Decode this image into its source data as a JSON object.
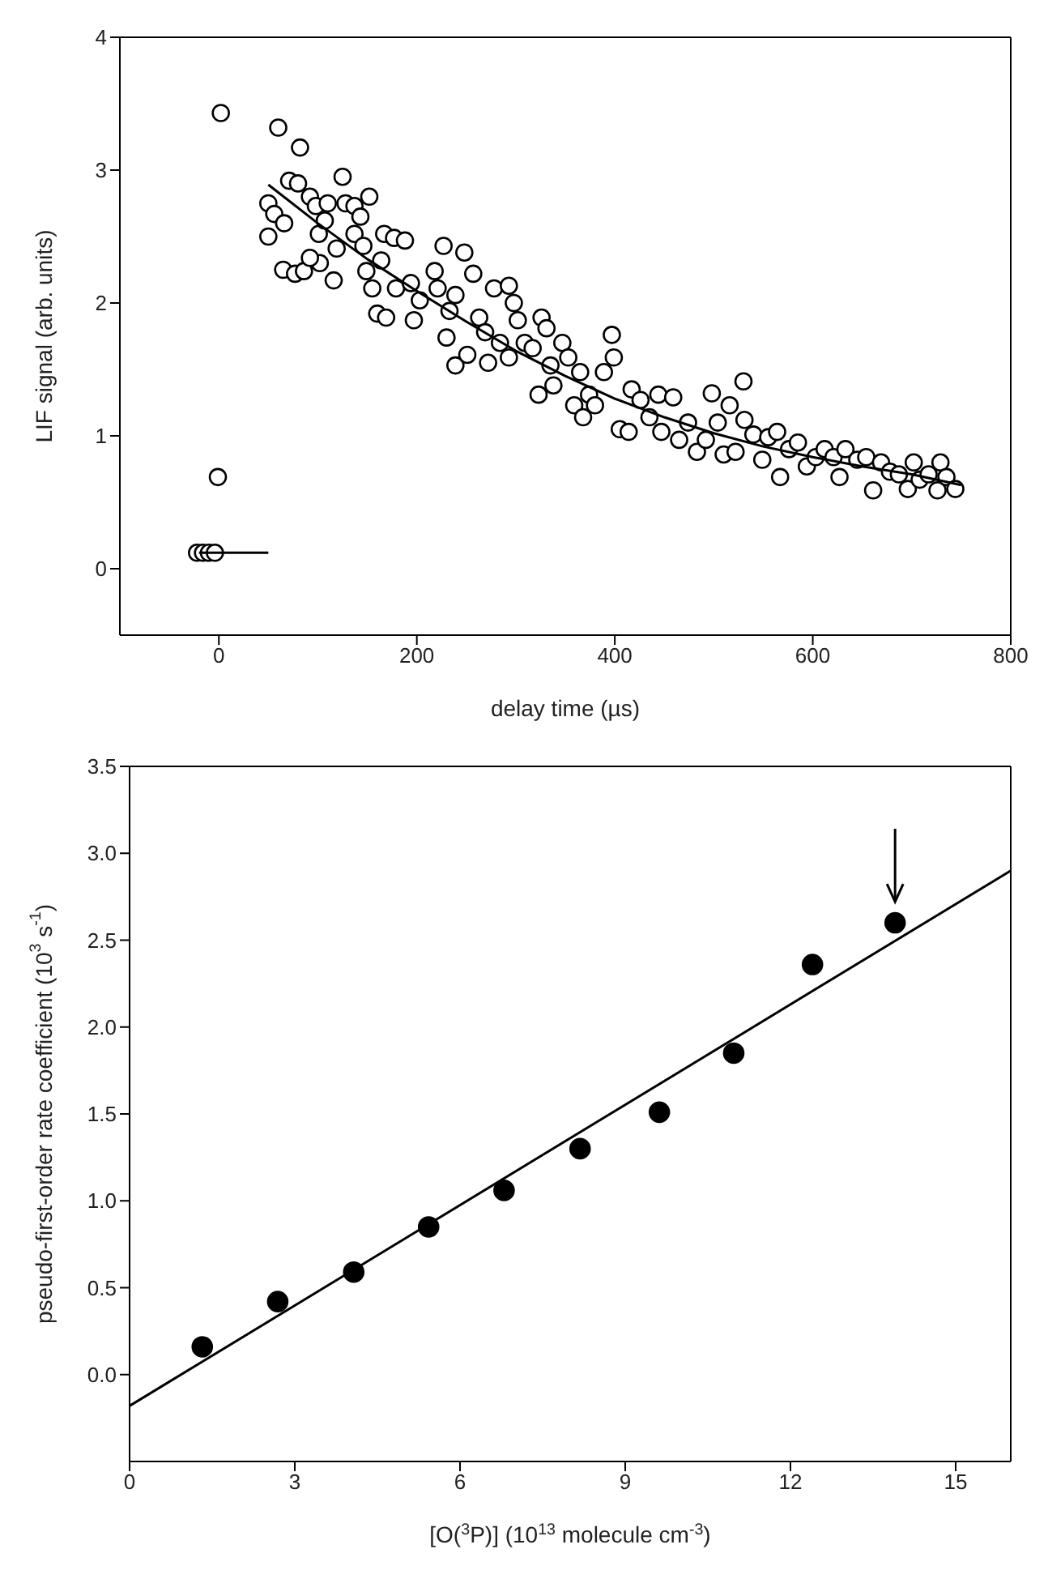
{
  "chart_data": [
    {
      "type": "scatter",
      "xlabel": "delay time (µs)",
      "ylabel": "LIF signal (arb. units)",
      "xlim": [
        -100,
        800
      ],
      "xticks": [
        0,
        200,
        400,
        600,
        800
      ],
      "ylim": [
        -0.5,
        4
      ],
      "yticks": [
        0,
        1,
        2,
        3,
        4
      ],
      "series": [
        {
          "marker": "circle",
          "color": "#000000",
          "x": [
            2,
            -1,
            -22,
            -16,
            -10,
            -4,
            60,
            82,
            50,
            50,
            56,
            66,
            71,
            80,
            65,
            77,
            86,
            92,
            98,
            101,
            107,
            110,
            102,
            92,
            116,
            125,
            119,
            128,
            137,
            137,
            143,
            152,
            146,
            149,
            155,
            160,
            169,
            164,
            167,
            177,
            188,
            179,
            197,
            194,
            203,
            218,
            227,
            221,
            230,
            233,
            239,
            239,
            248,
            257,
            251,
            263,
            269,
            272,
            278,
            293,
            298,
            284,
            293,
            302,
            309,
            317,
            326,
            331,
            323,
            338,
            335,
            347,
            353,
            359,
            365,
            368,
            374,
            380,
            389,
            397,
            399,
            405,
            414,
            417,
            426,
            435,
            444,
            447,
            459,
            465,
            474,
            483,
            492,
            498,
            504,
            510,
            516,
            522,
            530,
            531,
            540,
            549,
            555,
            564,
            567,
            576,
            585,
            594,
            603,
            612,
            621,
            627,
            633,
            645,
            654,
            661,
            669,
            678,
            687,
            696,
            702,
            708,
            717,
            726,
            729,
            735,
            744
          ],
          "values": [
            3.43,
            0.69,
            0.12,
            0.12,
            0.12,
            0.12,
            3.32,
            3.17,
            2.5,
            2.75,
            2.67,
            2.6,
            2.92,
            2.9,
            2.25,
            2.22,
            2.24,
            2.8,
            2.73,
            2.52,
            2.62,
            2.75,
            2.3,
            2.34,
            2.17,
            2.95,
            2.41,
            2.75,
            2.73,
            2.52,
            2.65,
            2.8,
            2.43,
            2.24,
            2.11,
            1.92,
            1.89,
            2.32,
            2.52,
            2.49,
            2.47,
            2.11,
            1.87,
            2.15,
            2.02,
            2.24,
            2.43,
            2.11,
            1.74,
            1.94,
            1.53,
            2.06,
            2.38,
            2.22,
            1.61,
            1.89,
            1.78,
            1.55,
            2.11,
            2.13,
            2.0,
            1.7,
            1.59,
            1.87,
            1.7,
            1.66,
            1.89,
            1.81,
            1.31,
            1.38,
            1.53,
            1.7,
            1.59,
            1.23,
            1.48,
            1.14,
            1.31,
            1.23,
            1.48,
            1.76,
            1.59,
            1.05,
            1.03,
            1.35,
            1.27,
            1.14,
            1.31,
            1.03,
            1.29,
            0.97,
            1.1,
            0.88,
            0.97,
            1.32,
            1.1,
            0.86,
            1.23,
            0.88,
            1.41,
            1.12,
            1.01,
            0.82,
            0.99,
            1.03,
            0.69,
            0.9,
            0.95,
            0.77,
            0.84,
            0.9,
            0.84,
            0.69,
            0.9,
            0.82,
            0.84,
            0.59,
            0.8,
            0.73,
            0.71,
            0.6,
            0.8,
            0.67,
            0.71,
            0.59,
            0.8,
            0.69,
            0.6
          ]
        },
        {
          "type": "line",
          "marker": "none",
          "line_style": "solid",
          "color": "#000000",
          "x": [
            50,
            100,
            150,
            200,
            250,
            300,
            350,
            400,
            450,
            500,
            550,
            600,
            650,
            700,
            750
          ],
          "values": [
            2.89,
            2.6,
            2.33,
            2.09,
            1.86,
            1.64,
            1.45,
            1.28,
            1.14,
            1.02,
            0.92,
            0.84,
            0.77,
            0.71,
            0.63
          ]
        },
        {
          "type": "line",
          "marker": "none",
          "line_style": "solid",
          "color": "#000000",
          "x": [
            -20,
            50
          ],
          "values": [
            0.12,
            0.12
          ]
        }
      ]
    },
    {
      "type": "scatter",
      "xlabel": "[O($^{3}$P)] (10$^{13}$ molecule cm$^{-3}$)",
      "ylabel": "pseudo-first-order rate coefficient (10$^{3}$ s$^{-1}$)",
      "xlim": [
        0,
        16
      ],
      "xticks": [
        0,
        3,
        6,
        9,
        12,
        15
      ],
      "ylim": [
        -0.5,
        3.5
      ],
      "yticks": [
        {
          "value": 0,
          "label": "0.0"
        },
        {
          "value": 0.5,
          "label": "0.5"
        },
        {
          "value": 1,
          "label": "1.0"
        },
        {
          "value": 1.5,
          "label": "1.5"
        },
        {
          "value": 2,
          "label": "2.0"
        },
        {
          "value": 2.5,
          "label": "2.5"
        },
        {
          "value": 3,
          "label": "3.0"
        },
        {
          "value": 3.5,
          "label": "3.5"
        }
      ],
      "series": [
        {
          "marker": "circle",
          "color": "#000000",
          "x": [
            1.32,
            2.69,
            4.07,
            5.43,
            6.8,
            8.18,
            9.62,
            10.97,
            12.4,
            13.9
          ],
          "values": [
            0.16,
            0.42,
            0.59,
            0.85,
            1.06,
            1.3,
            1.51,
            1.85,
            2.36,
            2.6
          ]
        },
        {
          "type": "line",
          "marker": "none",
          "line_style": "solid",
          "color": "#000000",
          "x": [
            0,
            16
          ],
          "values": [
            -0.18,
            2.9
          ]
        }
      ]
    }
  ]
}
